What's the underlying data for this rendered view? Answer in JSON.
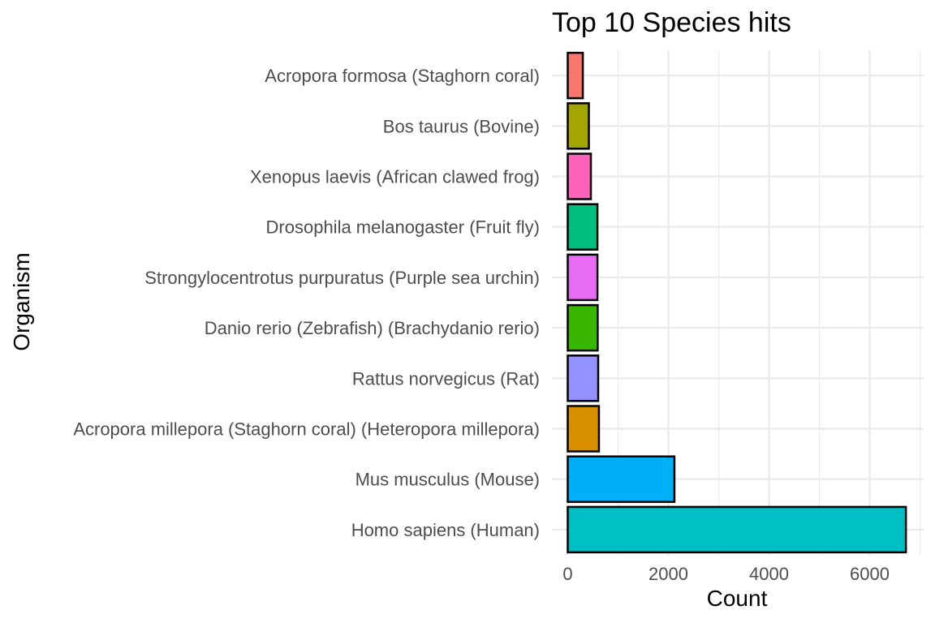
{
  "chart_data": {
    "type": "bar",
    "orientation": "horizontal",
    "title": "Top 10 Species hits",
    "xlabel": "Count",
    "ylabel": "Organism",
    "xlim": [
      0,
      7050
    ],
    "xticks": [
      0,
      2000,
      4000,
      6000
    ],
    "grid": true,
    "legend": "none",
    "categories": [
      "Acropora formosa (Staghorn coral)",
      "Bos taurus (Bovine)",
      "Xenopus laevis (African clawed frog)",
      "Drosophila melanogaster (Fruit fly)",
      "Strongylocentrotus purpuratus (Purple sea urchin)",
      "Danio rerio (Zebrafish) (Brachydanio rerio)",
      "Rattus norvegicus (Rat)",
      "Acropora millepora (Staghorn coral) (Heteropora millepora)",
      "Mus musculus (Mouse)",
      "Homo sapiens (Human)"
    ],
    "values": [
      300,
      420,
      460,
      590,
      590,
      595,
      605,
      620,
      2120,
      6720
    ],
    "colors": [
      "#F8766D",
      "#A3A500",
      "#FF62BC",
      "#00BF7D",
      "#E76BF3",
      "#39B600",
      "#9590FF",
      "#D89000",
      "#00B0F6",
      "#00BFC4"
    ]
  }
}
